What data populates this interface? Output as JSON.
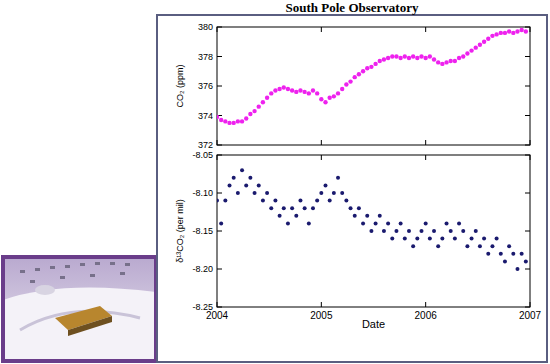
{
  "chart_data": [
    {
      "type": "scatter",
      "title": "South Pole Observatory",
      "ylabel": "CO₂ (ppm)",
      "xlim": [
        2004,
        2007
      ],
      "xticks": [
        2004,
        2005,
        2006,
        2007
      ],
      "ylim": [
        372,
        380
      ],
      "yticks": [
        372,
        374,
        376,
        378,
        380
      ],
      "tick_labels": "y",
      "x": [
        2004.0,
        2004.04,
        2004.08,
        2004.12,
        2004.16,
        2004.2,
        2004.24,
        2004.28,
        2004.32,
        2004.36,
        2004.4,
        2004.44,
        2004.48,
        2004.52,
        2004.56,
        2004.6,
        2004.64,
        2004.68,
        2004.72,
        2004.76,
        2004.8,
        2004.84,
        2004.88,
        2004.92,
        2004.96,
        2005.0,
        2005.04,
        2005.08,
        2005.12,
        2005.16,
        2005.2,
        2005.24,
        2005.28,
        2005.32,
        2005.36,
        2005.4,
        2005.44,
        2005.48,
        2005.52,
        2005.56,
        2005.6,
        2005.64,
        2005.68,
        2005.72,
        2005.76,
        2005.8,
        2005.84,
        2005.88,
        2005.92,
        2005.96,
        2006.0,
        2006.04,
        2006.08,
        2006.12,
        2006.16,
        2006.2,
        2006.24,
        2006.28,
        2006.32,
        2006.36,
        2006.4,
        2006.44,
        2006.48,
        2006.52,
        2006.56,
        2006.6,
        2006.64,
        2006.68,
        2006.72,
        2006.76,
        2006.8,
        2006.84,
        2006.88,
        2006.92,
        2006.96
      ],
      "series": [
        {
          "name": "CO₂",
          "color": "#ee22ee",
          "marker": "circle",
          "values": [
            373.9,
            373.7,
            373.6,
            373.5,
            373.5,
            373.6,
            373.6,
            373.8,
            374.1,
            374.3,
            374.6,
            374.9,
            375.2,
            375.5,
            375.7,
            375.8,
            375.9,
            375.8,
            375.7,
            375.6,
            375.7,
            375.6,
            375.5,
            375.7,
            375.5,
            375.1,
            374.9,
            375.2,
            375.3,
            375.5,
            375.8,
            376.1,
            376.3,
            376.6,
            376.8,
            377.0,
            377.2,
            377.3,
            377.5,
            377.7,
            377.8,
            377.9,
            378.0,
            378.0,
            377.9,
            378.0,
            377.9,
            378.0,
            377.9,
            378.0,
            377.9,
            378.0,
            377.8,
            377.6,
            377.5,
            377.6,
            377.7,
            377.7,
            377.9,
            378.0,
            378.2,
            378.4,
            378.6,
            378.8,
            379.0,
            379.2,
            379.4,
            379.5,
            379.6,
            379.6,
            379.7,
            379.6,
            379.7,
            379.8,
            379.7
          ]
        }
      ]
    },
    {
      "type": "scatter",
      "ylabel": "δ¹³CO₂ (per mil)",
      "xlabel": "Date",
      "xlim": [
        2004,
        2007
      ],
      "xticks": [
        2004,
        2005,
        2006,
        2007
      ],
      "ylim": [
        -8.25,
        -8.05
      ],
      "yticks": [
        -8.05,
        {
          "value": -8.1,
          "label": "-8.10"
        },
        -8.15,
        {
          "value": -8.2,
          "label": "-8.20"
        },
        -8.25
      ],
      "x": [
        2004.0,
        2004.04,
        2004.08,
        2004.12,
        2004.16,
        2004.2,
        2004.24,
        2004.28,
        2004.32,
        2004.36,
        2004.4,
        2004.44,
        2004.48,
        2004.52,
        2004.56,
        2004.6,
        2004.64,
        2004.68,
        2004.72,
        2004.76,
        2004.8,
        2004.84,
        2004.88,
        2004.92,
        2004.96,
        2005.0,
        2005.04,
        2005.08,
        2005.12,
        2005.16,
        2005.2,
        2005.24,
        2005.28,
        2005.32,
        2005.36,
        2005.4,
        2005.44,
        2005.48,
        2005.52,
        2005.56,
        2005.6,
        2005.64,
        2005.68,
        2005.72,
        2005.76,
        2005.8,
        2005.84,
        2005.88,
        2005.92,
        2005.96,
        2006.0,
        2006.04,
        2006.08,
        2006.12,
        2006.16,
        2006.2,
        2006.24,
        2006.28,
        2006.32,
        2006.36,
        2006.4,
        2006.44,
        2006.48,
        2006.52,
        2006.56,
        2006.6,
        2006.64,
        2006.68,
        2006.72,
        2006.76,
        2006.8,
        2006.84,
        2006.88,
        2006.92,
        2006.96
      ],
      "series": [
        {
          "name": "δ¹³CO₂",
          "color": "#1a1a6e",
          "marker": "circle",
          "values": [
            -8.11,
            -8.14,
            -8.11,
            -8.09,
            -8.08,
            -8.1,
            -8.07,
            -8.09,
            -8.08,
            -8.1,
            -8.09,
            -8.11,
            -8.1,
            -8.12,
            -8.11,
            -8.13,
            -8.12,
            -8.14,
            -8.12,
            -8.13,
            -8.11,
            -8.12,
            -8.14,
            -8.12,
            -8.11,
            -8.1,
            -8.09,
            -8.11,
            -8.1,
            -8.08,
            -8.1,
            -8.11,
            -8.12,
            -8.13,
            -8.12,
            -8.14,
            -8.13,
            -8.15,
            -8.14,
            -8.13,
            -8.15,
            -8.14,
            -8.16,
            -8.15,
            -8.14,
            -8.16,
            -8.15,
            -8.17,
            -8.16,
            -8.15,
            -8.14,
            -8.16,
            -8.15,
            -8.17,
            -8.16,
            -8.14,
            -8.15,
            -8.16,
            -8.14,
            -8.15,
            -8.17,
            -8.16,
            -8.15,
            -8.17,
            -8.16,
            -8.18,
            -8.17,
            -8.16,
            -8.18,
            -8.19,
            -8.17,
            -8.18,
            -8.2,
            -8.18,
            -8.19
          ]
        }
      ]
    }
  ]
}
